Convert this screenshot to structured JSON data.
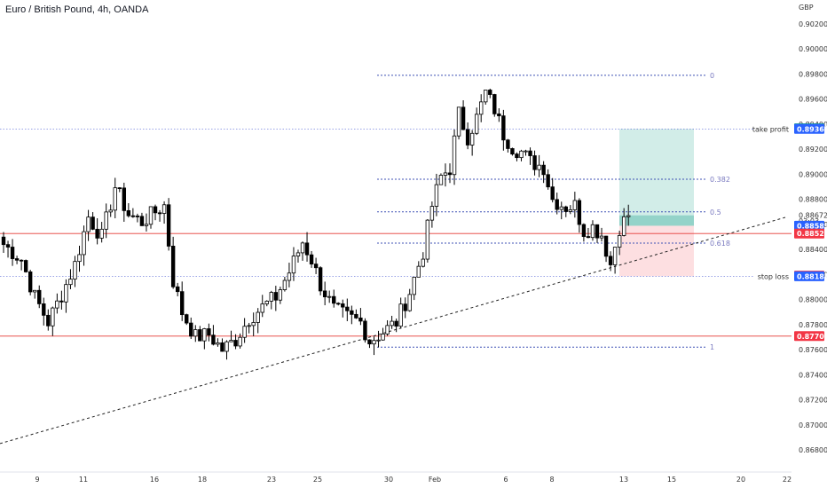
{
  "title": "Euro / British Pound, 4h, OANDA",
  "chart_data": {
    "type": "candlestick",
    "symbol": "Euro / British Pound, 4h, OANDA",
    "currency_label": "GBP",
    "y_ticks": [
      "0.90200",
      "0.90000",
      "0.89800",
      "0.89600",
      "0.89400",
      "0.89200",
      "0.89000",
      "0.88800",
      "0.88600",
      "0.88400",
      "0.88200",
      "0.88000",
      "0.87800",
      "0.87600",
      "0.87400",
      "0.87200",
      "0.87000",
      "0.86800"
    ],
    "ylim": [
      0.867,
      0.9038
    ],
    "x_ticks": [
      "9",
      "11",
      "16",
      "18",
      "23",
      "25",
      "30",
      "Feb",
      "6",
      "8",
      "13",
      "15",
      "20",
      "22"
    ],
    "fib_levels": [
      {
        "label": "0",
        "price": 0.8979
      },
      {
        "label": "0.382",
        "price": 0.8896
      },
      {
        "label": "0.5",
        "price": 0.887
      },
      {
        "label": "0.618",
        "price": 0.8845
      },
      {
        "label": "1",
        "price": 0.8762
      }
    ],
    "horizontal_lines": [
      {
        "price": 0.88527,
        "color": "#e53935"
      },
      {
        "price": 0.87708,
        "color": "#e53935"
      }
    ],
    "dotted_lines": [
      {
        "price": 0.89362,
        "label": "take profit"
      },
      {
        "price": 0.88186,
        "label": "stop loss"
      }
    ],
    "position": {
      "entry": 0.88589,
      "take_profit": 0.89362,
      "stop_loss": 0.88186,
      "current": 0.88672
    },
    "price_tags": [
      {
        "text": "0.89367",
        "price": 0.89367,
        "color": "#089981"
      },
      {
        "text": "0.89362",
        "price": 0.89362,
        "color": "#2962ff"
      },
      {
        "text": "0.88672",
        "price": 0.88672,
        "color": "#ffffff"
      },
      {
        "text": "03:03",
        "price": 0.88626,
        "color": "#ffffff"
      },
      {
        "text": "0.88589",
        "price": 0.88589,
        "color": "#2962ff"
      },
      {
        "text": "0.88527",
        "price": 0.88527,
        "color": "#f23645"
      },
      {
        "text": "0.88191",
        "price": 0.88191,
        "color": "#f23645"
      },
      {
        "text": "0.88186",
        "price": 0.88186,
        "color": "#2962ff"
      },
      {
        "text": "0.87708",
        "price": 0.87708,
        "color": "#f23645"
      }
    ],
    "trendline": {
      "from": [
        0,
        0.8685
      ],
      "to": [
        153,
        0.8867
      ]
    },
    "close_path": [
      {
        "i": 0,
        "c": 0.8844
      },
      {
        "i": 2,
        "c": 0.8838
      },
      {
        "i": 4,
        "c": 0.8832
      },
      {
        "i": 7,
        "c": 0.8802
      },
      {
        "i": 10,
        "c": 0.8782
      },
      {
        "i": 13,
        "c": 0.8804
      },
      {
        "i": 16,
        "c": 0.8828
      },
      {
        "i": 19,
        "c": 0.8866
      },
      {
        "i": 22,
        "c": 0.885
      },
      {
        "i": 25,
        "c": 0.889
      },
      {
        "i": 28,
        "c": 0.8868
      },
      {
        "i": 31,
        "c": 0.8862
      },
      {
        "i": 34,
        "c": 0.887
      },
      {
        "i": 36,
        "c": 0.8875
      },
      {
        "i": 38,
        "c": 0.8815
      },
      {
        "i": 40,
        "c": 0.879
      },
      {
        "i": 43,
        "c": 0.877
      },
      {
        "i": 46,
        "c": 0.8772
      },
      {
        "i": 49,
        "c": 0.876
      },
      {
        "i": 52,
        "c": 0.8768
      },
      {
        "i": 55,
        "c": 0.8785
      },
      {
        "i": 58,
        "c": 0.8794
      },
      {
        "i": 61,
        "c": 0.8802
      },
      {
        "i": 64,
        "c": 0.8822
      },
      {
        "i": 67,
        "c": 0.8846
      },
      {
        "i": 69,
        "c": 0.8832
      },
      {
        "i": 71,
        "c": 0.8812
      },
      {
        "i": 74,
        "c": 0.8792
      },
      {
        "i": 77,
        "c": 0.8786
      },
      {
        "i": 80,
        "c": 0.8782
      },
      {
        "i": 82,
        "c": 0.8767
      },
      {
        "i": 85,
        "c": 0.8774
      },
      {
        "i": 88,
        "c": 0.8782
      },
      {
        "i": 91,
        "c": 0.8806
      },
      {
        "i": 94,
        "c": 0.8838
      },
      {
        "i": 96,
        "c": 0.8875
      },
      {
        "i": 98,
        "c": 0.8898
      },
      {
        "i": 100,
        "c": 0.8905
      },
      {
        "i": 102,
        "c": 0.8948
      },
      {
        "i": 104,
        "c": 0.893
      },
      {
        "i": 106,
        "c": 0.8945
      },
      {
        "i": 108,
        "c": 0.8965
      },
      {
        "i": 110,
        "c": 0.8952
      },
      {
        "i": 112,
        "c": 0.8932
      },
      {
        "i": 114,
        "c": 0.8922
      },
      {
        "i": 116,
        "c": 0.8918
      },
      {
        "i": 118,
        "c": 0.891
      },
      {
        "i": 121,
        "c": 0.8906
      },
      {
        "i": 123,
        "c": 0.888
      },
      {
        "i": 126,
        "c": 0.8874
      },
      {
        "i": 128,
        "c": 0.8875
      },
      {
        "i": 130,
        "c": 0.8855
      },
      {
        "i": 132,
        "c": 0.8858
      },
      {
        "i": 134,
        "c": 0.8852
      },
      {
        "i": 136,
        "c": 0.8828
      },
      {
        "i": 138,
        "c": 0.8858
      },
      {
        "i": 140,
        "c": 0.8867
      }
    ],
    "grid": false
  },
  "axis_labels": {
    "take_profit": "take profit",
    "stop_loss": "stop loss"
  }
}
